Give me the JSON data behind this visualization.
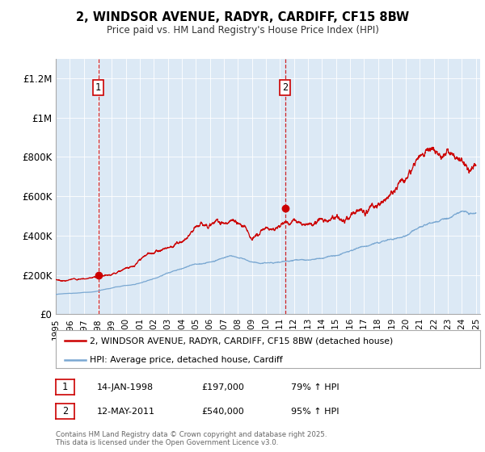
{
  "title_line1": "2, WINDSOR AVENUE, RADYR, CARDIFF, CF15 8BW",
  "title_line2": "Price paid vs. HM Land Registry's House Price Index (HPI)",
  "y_ticks": [
    0,
    200000,
    400000,
    600000,
    800000,
    1000000,
    1200000
  ],
  "y_tick_labels": [
    "£0",
    "£200K",
    "£400K",
    "£600K",
    "£800K",
    "£1M",
    "£1.2M"
  ],
  "sale1_date_str": "14-JAN-1998",
  "sale1_year": 1998.04,
  "sale1_price": 197000,
  "sale2_date_str": "12-MAY-2011",
  "sale2_year": 2011.37,
  "sale2_price": 540000,
  "sale1_hpi_pct": "79% ↑ HPI",
  "sale2_hpi_pct": "95% ↑ HPI",
  "red_line_color": "#cc0000",
  "blue_line_color": "#7aa8d2",
  "dashed_line_color": "#cc0000",
  "plot_bg_color": "#dce9f5",
  "legend_label_red": "2, WINDSOR AVENUE, RADYR, CARDIFF, CF15 8BW (detached house)",
  "legend_label_blue": "HPI: Average price, detached house, Cardiff",
  "footer_text": "Contains HM Land Registry data © Crown copyright and database right 2025.\nThis data is licensed under the Open Government Licence v3.0.",
  "x_tick_years": [
    1995,
    1996,
    1997,
    1998,
    1999,
    2000,
    2001,
    2002,
    2003,
    2004,
    2005,
    2006,
    2007,
    2008,
    2009,
    2010,
    2011,
    2012,
    2013,
    2014,
    2015,
    2016,
    2017,
    2018,
    2019,
    2020,
    2021,
    2022,
    2023,
    2024,
    2025
  ]
}
